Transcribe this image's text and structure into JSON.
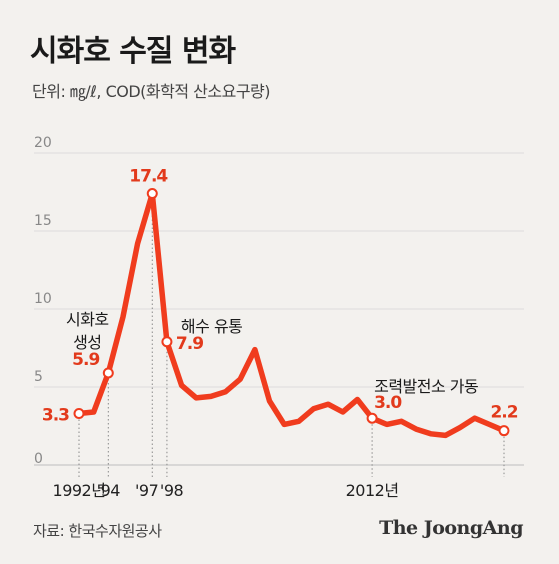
{
  "header": {
    "title": "시화호 수질 변화",
    "subtitle": "단위: ㎎/ℓ, COD(화학적 산소요구량)"
  },
  "footer": {
    "source": "자료: 한국수자원공사",
    "logo": "The JoongAng"
  },
  "colors": {
    "line": "#f03c1e",
    "value_text": "#e23a1c",
    "grid": "#dcdcdc",
    "background": "#f3f1ee"
  },
  "chart_data": {
    "type": "line",
    "title": "시화호 수질 변화",
    "ylabel": "단위: ㎎/ℓ, COD(화학적 산소요구량)",
    "xlabel": "",
    "ylim": [
      0,
      20
    ],
    "xlim": [
      1992,
      2021
    ],
    "yticks": [
      "0",
      "5",
      "10",
      "15",
      "20"
    ],
    "xtick_labels": [
      {
        "x": 1992,
        "label": "1992년"
      },
      {
        "x": 1994,
        "label": "'94"
      },
      {
        "x": 1997,
        "label": "'97"
      },
      {
        "x": 1998,
        "label": "'98"
      },
      {
        "x": 2012,
        "label": "2012년"
      }
    ],
    "grid": true,
    "legend": "none",
    "series": [
      {
        "x": [
          1992,
          1993,
          1994,
          1995,
          1996,
          1997,
          1998,
          1999,
          2000,
          2001,
          2002,
          2003,
          2004,
          2005,
          2006,
          2007,
          2008,
          2009,
          2010,
          2011,
          2012,
          2013,
          2014,
          2015,
          2016,
          2017,
          2018,
          2019,
          2020,
          2021
        ],
        "values": [
          3.3,
          3.4,
          5.9,
          9.5,
          14.2,
          17.4,
          7.9,
          5.1,
          4.3,
          4.4,
          4.7,
          5.5,
          7.4,
          4.1,
          2.6,
          2.8,
          3.6,
          3.9,
          3.4,
          4.2,
          3.0,
          2.6,
          2.8,
          2.3,
          2.0,
          1.9,
          2.4,
          3.0,
          2.6,
          2.2
        ]
      }
    ],
    "data_labels": [
      {
        "x": 1992,
        "value": "3.3"
      },
      {
        "x": 1994,
        "value": "5.9"
      },
      {
        "x": 1997,
        "value": "17.4"
      },
      {
        "x": 1998,
        "value": "7.9"
      },
      {
        "x": 2012,
        "value": "3.0"
      },
      {
        "x": 2021,
        "value": "2.2"
      }
    ],
    "annotations": [
      {
        "x": 1994,
        "lines": [
          "시화호",
          "생성"
        ]
      },
      {
        "x": 1998,
        "lines": [
          "해수 유통"
        ]
      },
      {
        "x": 2012,
        "lines": [
          "조력발전소 가동"
        ]
      }
    ]
  }
}
